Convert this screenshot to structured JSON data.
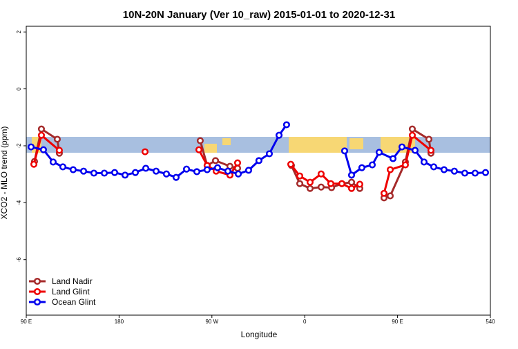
{
  "chart_data": {
    "type": "line",
    "title": "10N-20N January (Ver 10_raw)   2015-01-01 to 2020-12-31",
    "xlabel": "Longitude",
    "ylabel": "XCO2 - MLO trend (ppm)",
    "xlim": [
      90,
      540
    ],
    "ylim": [
      -7.95,
      2.2
    ],
    "xticks": [
      {
        "value": 90,
        "label": "90 E"
      },
      180,
      {
        "value": 270,
        "label": "90 W"
      },
      {
        "value": 360,
        "label": "0"
      },
      {
        "value": 450,
        "label": "90 E"
      },
      540
    ],
    "yticks": [
      2,
      0,
      -2,
      -4,
      -6
    ],
    "legend": "bottom-left",
    "series": [
      {
        "name": "Land Nadir",
        "color": "#a52a2a",
        "x": [
          98.0,
          104.7,
          120.1,
          122.1,
          190,
          258.7,
          265.4,
          273.5,
          287.5,
          294.9,
          320,
          347.1,
          355.2,
          365.2,
          375.9,
          386.0,
          396.0,
          405.4,
          413.4,
          425,
          436.9,
          442.9,
          457.6,
          464.3,
          480.4,
          482.4
        ],
        "values": [
          -2.55,
          -1.41,
          -1.77,
          -2.26,
          null,
          -1.82,
          -2.69,
          -2.52,
          -2.72,
          -2.79,
          null,
          -2.69,
          -3.33,
          -3.5,
          -3.45,
          -3.47,
          -3.33,
          -3.28,
          -3.5,
          null,
          -3.83,
          -3.76,
          -2.57,
          -1.41,
          -1.77,
          -2.26
        ]
      },
      {
        "name": "Land Glint",
        "color": "#ee0000",
        "x": [
          97.4,
          104.7,
          122.1,
          160,
          205.2,
          230,
          257.4,
          265.4,
          274.1,
          287.5,
          294.9,
          320,
          346.5,
          355.2,
          365.2,
          375.9,
          385.3,
          396.0,
          405.4,
          413.4,
          425,
          436.9,
          442.9,
          457.6,
          464.3,
          482.4
        ],
        "values": [
          -2.65,
          -1.63,
          -2.16,
          null,
          -2.21,
          null,
          -2.14,
          -2.69,
          -2.89,
          -3.03,
          -2.6,
          null,
          -2.65,
          -3.06,
          -3.28,
          -2.99,
          -3.33,
          -3.33,
          -3.5,
          -3.35,
          null,
          -3.67,
          -2.84,
          -2.67,
          -1.63,
          -2.16
        ]
      },
      {
        "name": "Ocean Glint",
        "color": "#0000ee",
        "x": [
          94.7,
          106.7,
          116.1,
          125.5,
          135.5,
          145.6,
          155.6,
          165.7,
          175.7,
          185.8,
          195.8,
          205.9,
          215.9,
          225.9,
          235.3,
          245.4,
          255.4,
          265.4,
          275.5,
          285.5,
          295.6,
          305.6,
          315.6,
          325.7,
          335.1,
          342.4,
          370,
          398.7,
          405.4,
          415.4,
          425.5,
          432.2,
          445.6,
          454.3,
          467.0,
          475.7,
          485.1,
          495.1,
          505.1,
          515.2,
          525.2,
          535.3
        ],
        "values": [
          -2.04,
          -2.14,
          -2.57,
          -2.74,
          -2.84,
          -2.89,
          -2.96,
          -2.96,
          -2.94,
          -3.03,
          -2.94,
          -2.79,
          -2.89,
          -2.99,
          -3.11,
          -2.82,
          -2.91,
          -2.84,
          -2.77,
          -2.89,
          -2.99,
          -2.86,
          -2.52,
          -2.28,
          -1.63,
          -1.26,
          null,
          -2.18,
          -3.03,
          -2.77,
          -2.67,
          -2.23,
          -2.45,
          -2.04,
          -2.16,
          -2.57,
          -2.74,
          -2.84,
          -2.89,
          -2.96,
          -2.96,
          -2.94
        ]
      }
    ]
  }
}
